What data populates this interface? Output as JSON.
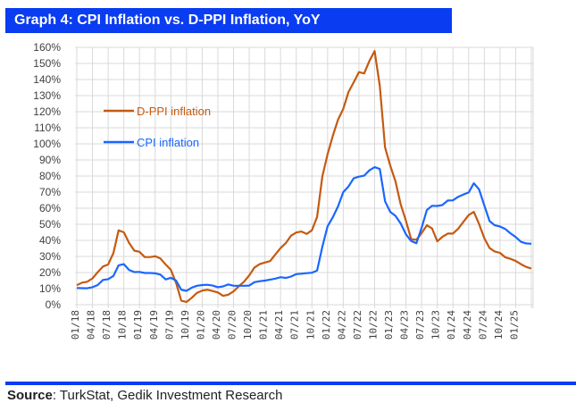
{
  "title": "Graph 4: CPI Inflation vs. D-PPI Inflation, YoY",
  "source": {
    "label": "Source",
    "text": ": TurkStat, Gedik Investment Research"
  },
  "chart_data": {
    "type": "line",
    "title": "Graph 4: CPI Inflation vs. D-PPI Inflation, YoY",
    "xlabel": "",
    "ylabel": "",
    "ylim": [
      0,
      160
    ],
    "yticks": [
      "0%",
      "10%",
      "20%",
      "30%",
      "40%",
      "50%",
      "60%",
      "70%",
      "80%",
      "90%",
      "100%",
      "110%",
      "120%",
      "130%",
      "140%",
      "150%",
      "160%"
    ],
    "xtick_labels": [
      "01/18",
      "04/18",
      "07/18",
      "10/18",
      "01/19",
      "04/19",
      "07/19",
      "10/19",
      "01/20",
      "04/20",
      "07/20",
      "10/20",
      "01/21",
      "04/21",
      "07/21",
      "10/21",
      "01/22",
      "04/22",
      "07/22",
      "10/22",
      "01/23",
      "04/23",
      "07/23",
      "10/23",
      "01/24",
      "04/24",
      "07/24",
      "10/24",
      "01/25"
    ],
    "x_start": "01/18",
    "x_end": "04/25",
    "frequency": "monthly",
    "grid": true,
    "legend_position": "upper-left inside",
    "series": [
      {
        "name": "D-PPI inflation",
        "color": "#c55a11",
        "values": [
          12.1,
          13.7,
          14.3,
          16.4,
          20.2,
          23.7,
          25.0,
          32.1,
          46.2,
          45.0,
          38.5,
          33.6,
          32.9,
          29.6,
          29.6,
          30.1,
          28.7,
          25.0,
          21.7,
          13.5,
          2.5,
          1.7,
          4.3,
          7.4,
          8.8,
          9.3,
          8.5,
          7.6,
          5.5,
          6.2,
          8.3,
          11.5,
          14.3,
          18.2,
          23.1,
          25.2,
          26.2,
          27.1,
          31.2,
          35.2,
          38.3,
          42.9,
          44.9,
          45.5,
          44.0,
          46.3,
          54.6,
          79.9,
          93.5,
          105.0,
          115.0,
          121.8,
          132.2,
          138.3,
          144.6,
          143.8,
          151.5,
          157.7,
          136.0,
          97.7,
          86.5,
          76.6,
          62.4,
          52.1,
          40.8,
          40.4,
          44.5,
          49.4,
          47.4,
          39.4,
          42.3,
          44.2,
          44.2,
          47.3,
          51.5,
          55.7,
          57.7,
          50.1,
          41.4,
          35.2,
          33.1,
          32.2,
          29.5,
          28.5,
          27.2,
          25.2,
          23.5,
          22.5
        ]
      },
      {
        "name": "CPI inflation",
        "color": "#1a66ff",
        "values": [
          10.4,
          10.3,
          10.2,
          10.9,
          12.2,
          15.4,
          15.9,
          17.9,
          24.5,
          25.2,
          21.6,
          20.3,
          20.4,
          19.7,
          19.7,
          19.5,
          18.7,
          15.7,
          16.7,
          15.0,
          9.3,
          8.6,
          10.6,
          11.8,
          12.2,
          12.4,
          11.9,
          10.9,
          11.4,
          12.6,
          11.8,
          11.8,
          11.8,
          11.9,
          14.0,
          14.6,
          15.0,
          15.6,
          16.2,
          17.1,
          16.6,
          17.5,
          19.0,
          19.3,
          19.6,
          19.9,
          21.3,
          36.1,
          48.7,
          54.4,
          61.1,
          70.0,
          73.5,
          78.6,
          79.6,
          80.2,
          83.5,
          85.5,
          84.4,
          64.3,
          57.7,
          55.2,
          50.5,
          43.7,
          39.6,
          38.2,
          47.8,
          58.9,
          61.5,
          61.4,
          62.0,
          64.8,
          64.9,
          67.1,
          68.5,
          69.8,
          75.5,
          71.6,
          61.8,
          52.0,
          49.4,
          48.6,
          47.1,
          44.4,
          42.1,
          39.1,
          38.1,
          37.9
        ]
      }
    ]
  }
}
